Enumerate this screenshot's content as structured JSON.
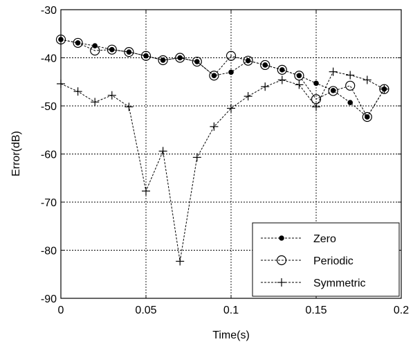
{
  "chart_data": {
    "type": "line",
    "xlabel": "Time(s)",
    "ylabel": "Error(dB)",
    "xlim": [
      0,
      0.2
    ],
    "ylim": [
      -90,
      -30
    ],
    "xticks": [
      0,
      0.05,
      0.1,
      0.15,
      0.2
    ],
    "yticks": [
      -90,
      -80,
      -70,
      -60,
      -50,
      -40,
      -30
    ],
    "xtick_labels": [
      "0",
      "0.05",
      "0.1",
      "0.15",
      "0.2"
    ],
    "ytick_labels": [
      "-90",
      "-80",
      "-70",
      "-60",
      "-50",
      "-40",
      "-30"
    ],
    "grid": true,
    "legend_position": "bottom-right",
    "series": [
      {
        "name": "Zero",
        "marker": "filled-dot",
        "x": [
          0,
          0.01,
          0.02,
          0.03,
          0.04,
          0.05,
          0.06,
          0.07,
          0.08,
          0.09,
          0.1,
          0.11,
          0.12,
          0.13,
          0.14,
          0.15,
          0.16,
          0.17,
          0.18,
          0.19
        ],
        "y": [
          -36.2,
          -36.9,
          -37.5,
          -38.3,
          -38.8,
          -39.6,
          -40.5,
          -40.0,
          -40.8,
          -43.7,
          -43.0,
          -40.6,
          -41.5,
          -42.5,
          -43.7,
          -45.3,
          -46.8,
          -49.3,
          -52.3,
          -46.5
        ]
      },
      {
        "name": "Periodic",
        "marker": "open-circle",
        "x": [
          0,
          0.01,
          0.02,
          0.03,
          0.04,
          0.05,
          0.06,
          0.07,
          0.08,
          0.09,
          0.1,
          0.11,
          0.12,
          0.13,
          0.14,
          0.15,
          0.16,
          0.17,
          0.18,
          0.19
        ],
        "y": [
          -36.2,
          -36.9,
          -38.5,
          -38.3,
          -38.8,
          -39.6,
          -40.5,
          -40.0,
          -40.8,
          -43.7,
          -39.6,
          -40.6,
          -41.5,
          -42.5,
          -43.7,
          -48.6,
          -46.9,
          -45.8,
          -52.3,
          -46.5
        ]
      },
      {
        "name": "Symmetric",
        "marker": "plus",
        "x": [
          0,
          0.01,
          0.02,
          0.03,
          0.04,
          0.05,
          0.06,
          0.07,
          0.08,
          0.09,
          0.1,
          0.11,
          0.12,
          0.13,
          0.14,
          0.15,
          0.16,
          0.17,
          0.18,
          0.19
        ],
        "y": [
          -45.4,
          -47.0,
          -49.2,
          -47.8,
          -50.2,
          -67.7,
          -59.4,
          -82.3,
          -60.7,
          -54.3,
          -50.5,
          -48.0,
          -46.0,
          -44.6,
          -45.6,
          -50.2,
          -42.9,
          -43.6,
          -44.6,
          -46.5
        ]
      }
    ]
  }
}
